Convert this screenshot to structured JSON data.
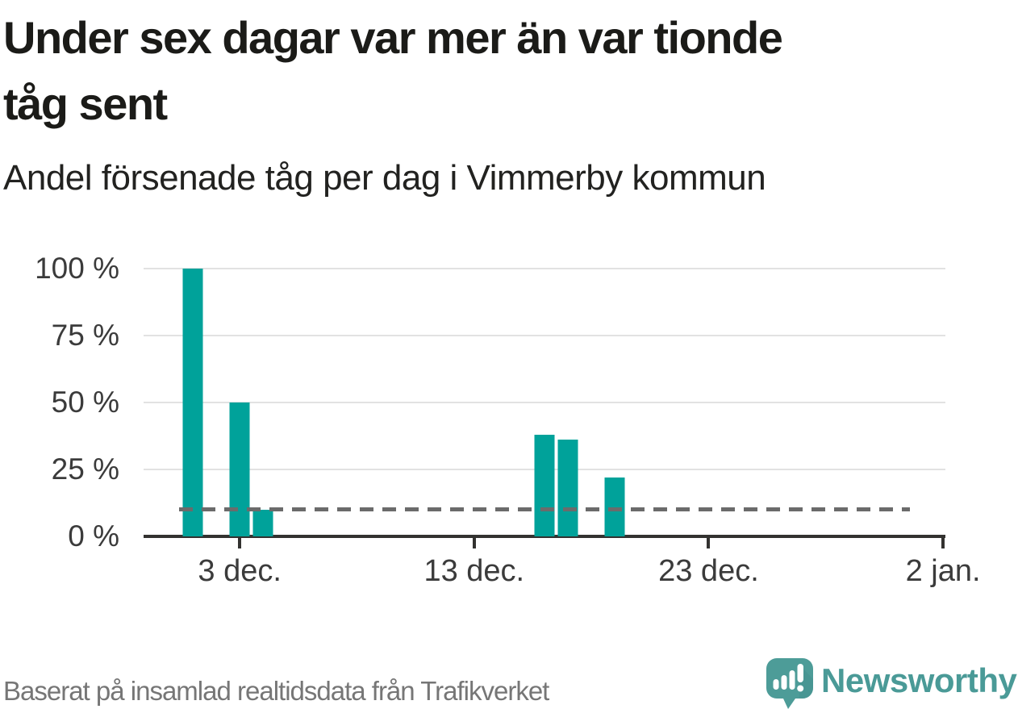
{
  "header": {
    "title": "Under sex dagar var mer än var tionde\ntåg sent",
    "subtitle": "Andel försenade tåg per dag i Vimmerby kommun"
  },
  "footer": {
    "source": "Baserat på insamlad realtidsdata från Trafikverket",
    "brand_name": "Newsworthy",
    "brand_icon": "newsworthy-speech-bubble-bar-chart-exclamation-icon"
  },
  "colors": {
    "bar": "#00a29a",
    "reference_line": "#6b6b6b",
    "axis": "#333230",
    "gridline": "#e2e2e2",
    "axis_label_text": "#3b3b3b",
    "title_text": "#1b1b18",
    "footer_text": "#767676",
    "brand_teal": "#4a9a97"
  },
  "chart_data": {
    "type": "bar",
    "title": "Under sex dagar var mer än var tionde tåg sent",
    "subtitle": "Andel försenade tåg per dag i Vimmerby kommun",
    "unit": "%",
    "categories": [
      "1 dec.",
      "3 dec.",
      "4 dec.",
      "16 dec.",
      "17 dec.",
      "19 dec."
    ],
    "values": [
      100,
      50,
      10,
      38,
      36,
      22
    ],
    "day_offsets": [
      0,
      2,
      3,
      15,
      16,
      18
    ],
    "reference_line_value": 10,
    "ylim": [
      0,
      100
    ],
    "xlim_days": [
      -2.1,
      32.1
    ],
    "yticks": [
      {
        "label": "100 %",
        "value": 100
      },
      {
        "label": "75 %",
        "value": 75
      },
      {
        "label": "50 %",
        "value": 50
      },
      {
        "label": "25 %",
        "value": 25
      },
      {
        "label": "0 %",
        "value": 0
      }
    ],
    "xticks": [
      {
        "label": "3 dec.",
        "day": 2
      },
      {
        "label": "13 dec.",
        "day": 12
      },
      {
        "label": "23 dec.",
        "day": 22
      },
      {
        "label": "2 jan.",
        "day": 32
      }
    ],
    "grid": "horizontal",
    "legend": "none",
    "source": "Baserat på insamlad realtidsdata från Trafikverket"
  }
}
